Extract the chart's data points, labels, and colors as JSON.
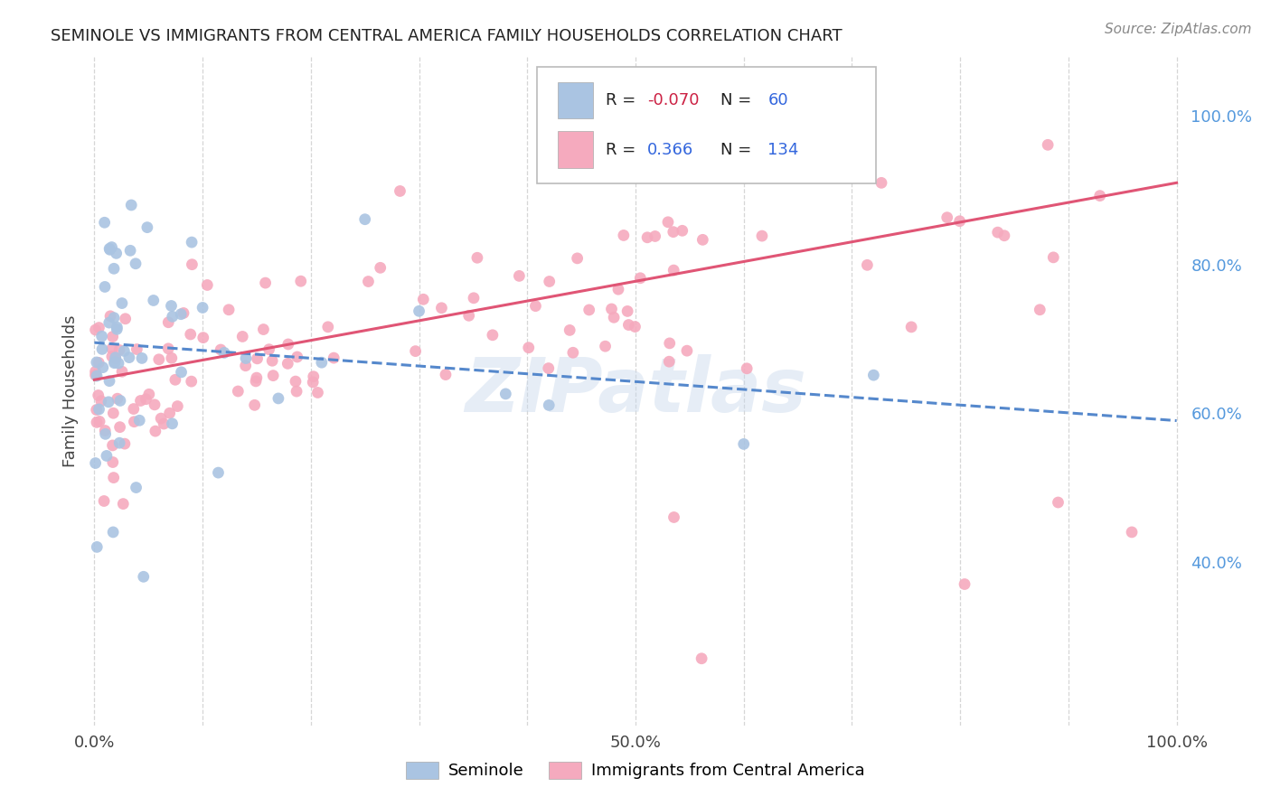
{
  "title": "SEMINOLE VS IMMIGRANTS FROM CENTRAL AMERICA FAMILY HOUSEHOLDS CORRELATION CHART",
  "source": "Source: ZipAtlas.com",
  "ylabel": "Family Households",
  "watermark": "ZIPatlas",
  "seminole_r": -0.07,
  "seminole_n": 60,
  "central_r": 0.366,
  "central_n": 134,
  "seminole_color": "#aac4e2",
  "central_color": "#f5aabe",
  "seminole_line_color": "#5588cc",
  "central_line_color": "#e05575",
  "bg_color": "#ffffff",
  "grid_color": "#cccccc",
  "ytick_color": "#5599dd",
  "legend_text_color": "#3366dd",
  "legend_r_neg_color": "#cc2244",
  "legend_r_pos_color": "#3366dd",
  "seminole_line_intercept": 0.695,
  "seminole_line_slope": -0.105,
  "central_line_intercept": 0.645,
  "central_line_slope": 0.265,
  "ylim_low": 0.18,
  "ylim_high": 1.08
}
